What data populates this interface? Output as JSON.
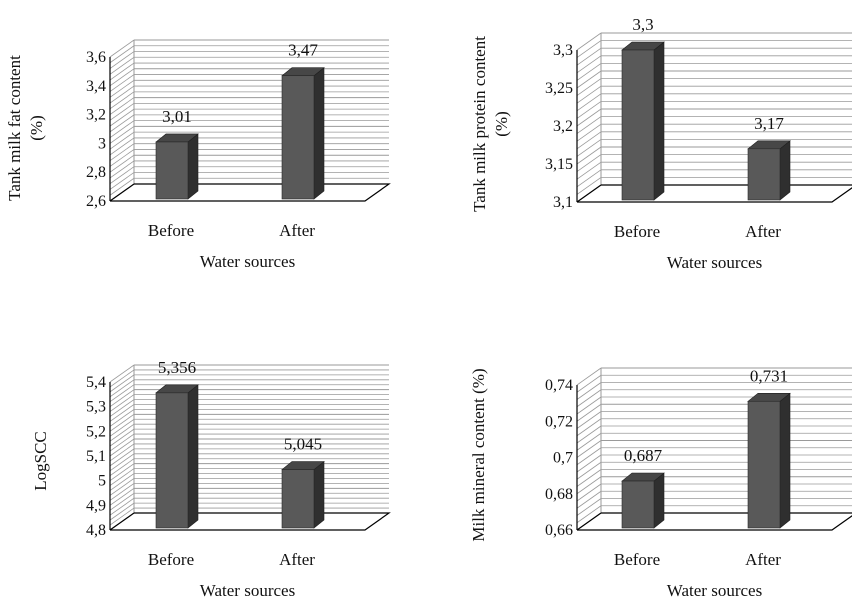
{
  "colors": {
    "bar_front": "#595959",
    "bar_side": "#2f2f2f",
    "bar_top": "#474747",
    "gridline": "#9a9a9a",
    "frame": "#000000"
  },
  "chart_data": [
    {
      "type": "bar",
      "style": "3d-clustered-column",
      "categories": [
        "Before",
        "After"
      ],
      "values": [
        3.01,
        3.47
      ],
      "data_labels": [
        "3,01",
        "3,47"
      ],
      "ylabel": "Tank milk fat content (%)",
      "ylabel_lines": [
        "Tank milk fat content",
        "(%)"
      ],
      "xlabel": "Water sources",
      "ylim": [
        2.6,
        3.6
      ],
      "yticks": [
        2.6,
        2.8,
        3.0,
        3.2,
        3.4,
        3.6
      ],
      "ytick_labels": [
        "2,6",
        "2,8",
        "3",
        "3,2",
        "3,4",
        "3,6"
      ],
      "grid": true
    },
    {
      "type": "bar",
      "style": "3d-clustered-column",
      "categories": [
        "Before",
        "After"
      ],
      "values": [
        3.3,
        3.17
      ],
      "data_labels": [
        "3,3",
        "3,17"
      ],
      "ylabel": "Tank milk protein content (%)",
      "ylabel_lines": [
        "Tank milk protein content",
        "(%)"
      ],
      "xlabel": "Water sources",
      "ylim": [
        3.1,
        3.3
      ],
      "yticks": [
        3.1,
        3.15,
        3.2,
        3.25,
        3.3
      ],
      "ytick_labels": [
        "3,1",
        "3,15",
        "3,2",
        "3,25",
        "3,3"
      ],
      "grid": true
    },
    {
      "type": "bar",
      "style": "3d-clustered-column",
      "categories": [
        "Before",
        "After"
      ],
      "values": [
        5.356,
        5.045
      ],
      "data_labels": [
        "5,356",
        "5,045"
      ],
      "ylabel": "LogSCC",
      "ylabel_lines": [
        "LogSCC"
      ],
      "xlabel": "Water sources",
      "ylim": [
        4.8,
        5.4
      ],
      "yticks": [
        4.8,
        4.9,
        5.0,
        5.1,
        5.2,
        5.3,
        5.4
      ],
      "ytick_labels": [
        "4,8",
        "4,9",
        "5",
        "5,1",
        "5,2",
        "5,3",
        "5,4"
      ],
      "grid": true
    },
    {
      "type": "bar",
      "style": "3d-clustered-column",
      "categories": [
        "Before",
        "After"
      ],
      "values": [
        0.687,
        0.731
      ],
      "data_labels": [
        "0,687",
        "0,731"
      ],
      "ylabel": "Milk mineral content (%)",
      "ylabel_lines": [
        "Milk mineral content (%)"
      ],
      "xlabel": "Water sources",
      "ylim": [
        0.66,
        0.74
      ],
      "yticks": [
        0.66,
        0.68,
        0.7,
        0.72,
        0.74
      ],
      "ytick_labels": [
        "0,66",
        "0,68",
        "0,7",
        "0,72",
        "0,74"
      ],
      "grid": true
    }
  ]
}
